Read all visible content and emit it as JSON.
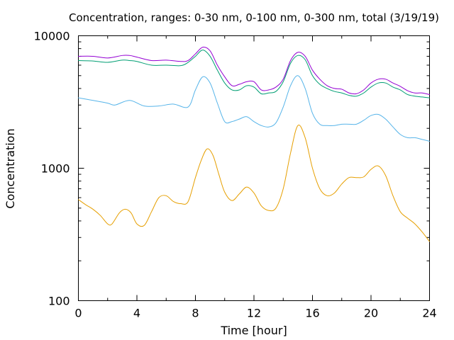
{
  "chart_data": {
    "type": "line",
    "title": "Concentration, ranges: 0-30 nm, 0-100 nm, 0-300 nm, total (3/19/19)",
    "xlabel": "Time [hour]",
    "ylabel": "Concentration",
    "xlim": [
      0,
      24
    ],
    "ylim": [
      100,
      10000
    ],
    "yscale": "log",
    "xticks": [
      0,
      4,
      8,
      12,
      16,
      20,
      24
    ],
    "yticks": [
      100,
      1000,
      10000
    ],
    "grid": false,
    "legend": "none",
    "series": [
      {
        "color": "#e69f00",
        "x": [
          0,
          0.5,
          1,
          1.5,
          2,
          2.3,
          2.8,
          3.2,
          3.6,
          4.0,
          4.5,
          5.0,
          5.5,
          6.0,
          6.5,
          7.0,
          7.5,
          8.0,
          8.4,
          8.8,
          9.2,
          9.6,
          10.0,
          10.5,
          11.0,
          11.5,
          12.0,
          12.5,
          13.0,
          13.5,
          14.0,
          14.5,
          15.0,
          15.5,
          16.0,
          16.5,
          17.0,
          17.5,
          18.0,
          18.5,
          19.0,
          19.5,
          20.0,
          20.5,
          21.0,
          21.5,
          22.0,
          22.5,
          23.0,
          23.5,
          24.0
        ],
        "values": [
          580,
          530,
          490,
          440,
          380,
          380,
          460,
          490,
          460,
          380,
          370,
          470,
          600,
          620,
          560,
          540,
          560,
          850,
          1150,
          1400,
          1250,
          900,
          660,
          570,
          640,
          720,
          650,
          520,
          480,
          500,
          700,
          1300,
          2100,
          1700,
          1000,
          700,
          620,
          650,
          760,
          850,
          850,
          860,
          980,
          1040,
          880,
          620,
          470,
          420,
          380,
          330,
          280
        ]
      },
      {
        "color": "#56b4e9",
        "x": [
          0,
          1,
          2,
          2.5,
          3.5,
          4.5,
          5.5,
          6.5,
          7.5,
          8.0,
          8.5,
          9.0,
          9.5,
          10.0,
          10.5,
          11.0,
          11.5,
          12.0,
          12.5,
          13.0,
          13.5,
          14.0,
          14.5,
          15.0,
          15.5,
          16.0,
          16.5,
          17.0,
          17.5,
          18.0,
          18.5,
          19.0,
          19.5,
          20.0,
          20.5,
          21.0,
          21.5,
          22.0,
          22.5,
          23.0,
          23.5,
          24.0
        ],
        "values": [
          3400,
          3250,
          3100,
          3000,
          3250,
          2950,
          2950,
          3050,
          2900,
          3900,
          4900,
          4400,
          3100,
          2250,
          2250,
          2350,
          2450,
          2250,
          2100,
          2050,
          2200,
          2900,
          4200,
          5000,
          4000,
          2600,
          2150,
          2100,
          2100,
          2150,
          2150,
          2150,
          2300,
          2500,
          2550,
          2350,
          2050,
          1800,
          1700,
          1700,
          1650,
          1600
        ]
      },
      {
        "color": "#009e73",
        "x": [
          0,
          1,
          2,
          3,
          3.5,
          4,
          5,
          6,
          7,
          7.5,
          8.0,
          8.5,
          9.0,
          9.5,
          10.0,
          10.5,
          11.0,
          11.5,
          12.0,
          12.5,
          13.0,
          13.5,
          14.0,
          14.5,
          15.0,
          15.5,
          16.0,
          16.5,
          17.0,
          17.5,
          18.0,
          18.5,
          19.0,
          19.5,
          20.0,
          20.5,
          21.0,
          21.5,
          22.0,
          22.5,
          23.0,
          23.5,
          24.0
        ],
        "values": [
          6500,
          6450,
          6300,
          6550,
          6500,
          6400,
          6000,
          6000,
          5950,
          6300,
          7000,
          7800,
          7000,
          5500,
          4400,
          3900,
          3900,
          4200,
          4100,
          3650,
          3700,
          3800,
          4500,
          6200,
          7100,
          6600,
          5000,
          4300,
          4000,
          3800,
          3700,
          3550,
          3500,
          3700,
          4100,
          4400,
          4400,
          4100,
          3900,
          3600,
          3500,
          3450,
          3400
        ]
      },
      {
        "color": "#9400d3",
        "x": [
          0,
          1,
          2,
          3,
          3.5,
          4,
          5,
          6,
          7,
          7.5,
          8.0,
          8.5,
          9.0,
          9.5,
          10.0,
          10.5,
          11.0,
          11.5,
          12.0,
          12.5,
          13.0,
          13.5,
          14.0,
          14.5,
          15.0,
          15.5,
          16.0,
          16.5,
          17.0,
          17.5,
          18.0,
          18.5,
          19.0,
          19.5,
          20.0,
          20.5,
          21.0,
          21.5,
          22.0,
          22.5,
          23.0,
          23.5,
          24.0
        ],
        "values": [
          7000,
          7000,
          6800,
          7100,
          7100,
          6900,
          6500,
          6550,
          6400,
          6500,
          7300,
          8200,
          7700,
          6000,
          4900,
          4200,
          4300,
          4500,
          4500,
          3900,
          3900,
          4100,
          4700,
          6500,
          7500,
          7000,
          5500,
          4700,
          4200,
          4000,
          3950,
          3700,
          3650,
          3900,
          4400,
          4700,
          4700,
          4400,
          4150,
          3850,
          3700,
          3700,
          3600
        ]
      }
    ]
  }
}
